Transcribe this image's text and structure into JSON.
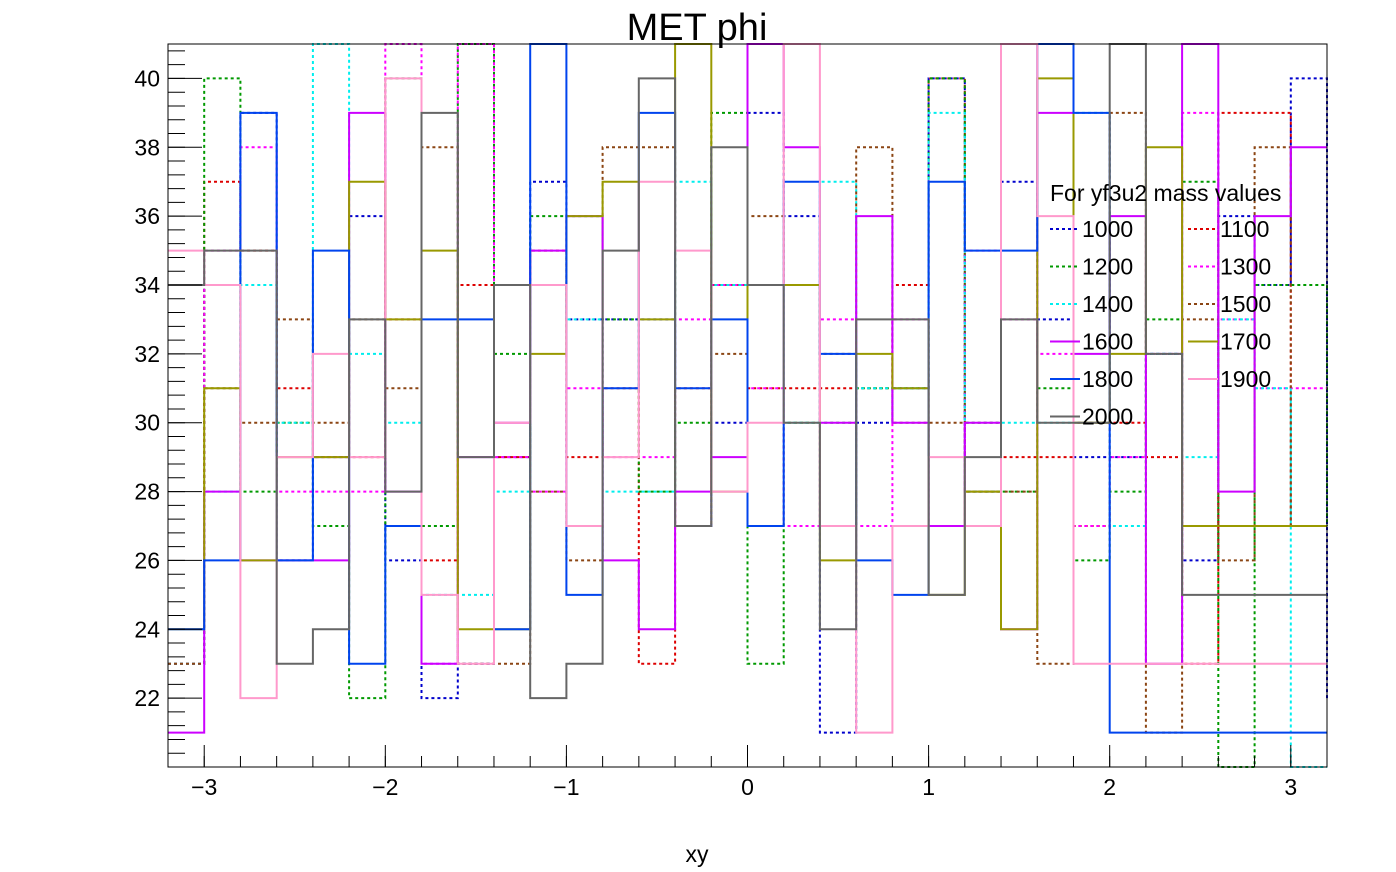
{
  "chart_data": {
    "type": "histogram-step",
    "title": "MET phi",
    "xlabel": "xy",
    "ylabel": "",
    "xlim": [
      -3.2,
      3.2
    ],
    "ylim": [
      20,
      41
    ],
    "x_ticks": [
      -3,
      -2,
      -1,
      0,
      1,
      2,
      3
    ],
    "x_tick_labels": [
      "−3",
      "−2",
      "−1",
      "0",
      "1",
      "2",
      "3"
    ],
    "y_ticks": [
      22,
      24,
      26,
      28,
      30,
      32,
      34,
      36,
      38,
      40
    ],
    "bins": 32,
    "grid": false,
    "legend": {
      "header": "For yf3u2 mass values",
      "placement": "top-right",
      "columns": 2
    },
    "series": [
      {
        "name": "1000",
        "color": "#0000cc",
        "dashed": true,
        "values": [
          23,
          34,
          39,
          26,
          29,
          36,
          26,
          22,
          23,
          29,
          37,
          33,
          33,
          33,
          27,
          30,
          39,
          36,
          21,
          30,
          31,
          40,
          28,
          37,
          33,
          29,
          29,
          32,
          26,
          36,
          34,
          40,
          22
        ]
      },
      {
        "name": "1100",
        "color": "#dd0000",
        "dashed": true,
        "values": [
          23,
          37,
          35,
          31,
          29,
          29,
          33,
          26,
          34,
          29,
          35,
          29,
          31,
          23,
          31,
          34,
          31,
          31,
          31,
          31,
          34,
          40,
          28,
          29,
          29,
          27,
          30,
          29,
          23,
          39,
          39,
          27,
          27
        ]
      },
      {
        "name": "1200",
        "color": "#009900",
        "dashed": true,
        "values": [
          23,
          40,
          28,
          30,
          27,
          22,
          40,
          27,
          41,
          32,
          36,
          36,
          33,
          28,
          30,
          39,
          23,
          30,
          30,
          31,
          31,
          40,
          28,
          28,
          31,
          26,
          28,
          33,
          37,
          20,
          34,
          34,
          27
        ]
      },
      {
        "name": "1300",
        "color": "#ff00ff",
        "dashed": true,
        "values": [
          23,
          35,
          38,
          28,
          28,
          28,
          42,
          23,
          41,
          29,
          28,
          31,
          29,
          29,
          33,
          34,
          31,
          27,
          33,
          27,
          33,
          27,
          35,
          33,
          32,
          27,
          29,
          32,
          39,
          33,
          31,
          31,
          31
        ]
      },
      {
        "name": "1400",
        "color": "#00eeee",
        "dashed": true,
        "values": [
          23,
          28,
          34,
          30,
          41,
          32,
          30,
          25,
          25,
          28,
          34,
          33,
          28,
          28,
          37,
          34,
          34,
          30,
          37,
          31,
          31,
          39,
          30,
          30,
          30,
          39,
          27,
          32,
          29,
          33,
          31,
          20,
          20
        ]
      },
      {
        "name": "1500",
        "color": "#8b4513",
        "dashed": true,
        "values": [
          23,
          31,
          30,
          33,
          30,
          33,
          31,
          38,
          23,
          23,
          28,
          26,
          38,
          38,
          27,
          32,
          36,
          34,
          32,
          38,
          30,
          30,
          30,
          28,
          23,
          30,
          39,
          21,
          33,
          26,
          38,
          27,
          27
        ]
      },
      {
        "name": "1600",
        "color": "#cc00ff",
        "dashed": false,
        "values": [
          21,
          28,
          26,
          26,
          26,
          39,
          28,
          23,
          29,
          30,
          35,
          36,
          26,
          24,
          28,
          29,
          41,
          38,
          30,
          36,
          30,
          27,
          30,
          24,
          39,
          32,
          36,
          23,
          41,
          28,
          36,
          38,
          38
        ]
      },
      {
        "name": "1700",
        "color": "#999900",
        "dashed": false,
        "values": [
          24,
          31,
          26,
          29,
          29,
          37,
          33,
          35,
          24,
          24,
          32,
          36,
          37,
          33,
          41,
          28,
          34,
          34,
          26,
          32,
          31,
          25,
          28,
          24,
          40,
          30,
          32,
          38,
          27,
          27,
          27,
          27,
          27
        ]
      },
      {
        "name": "1800",
        "color": "#0044ee",
        "dashed": false,
        "values": [
          24,
          26,
          39,
          26,
          35,
          23,
          27,
          33,
          33,
          24,
          41,
          25,
          31,
          39,
          31,
          33,
          27,
          37,
          32,
          26,
          25,
          37,
          35,
          35,
          41,
          39,
          21,
          21,
          21,
          21,
          21,
          21,
          21
        ]
      },
      {
        "name": "1900",
        "color": "#ff99cc",
        "dashed": false,
        "values": [
          35,
          34,
          22,
          29,
          32,
          29,
          40,
          25,
          23,
          30,
          34,
          27,
          29,
          37,
          35,
          28,
          30,
          41,
          27,
          21,
          27,
          29,
          27,
          41,
          36,
          23,
          23,
          23,
          23,
          23,
          23,
          23,
          23
        ]
      },
      {
        "name": "2000",
        "color": "#666666",
        "dashed": false,
        "values": [
          34,
          35,
          35,
          23,
          24,
          33,
          28,
          39,
          29,
          34,
          22,
          23,
          35,
          40,
          27,
          38,
          34,
          30,
          24,
          33,
          33,
          25,
          29,
          33,
          30,
          30,
          41,
          32,
          25,
          25,
          25,
          25,
          25
        ]
      }
    ]
  }
}
